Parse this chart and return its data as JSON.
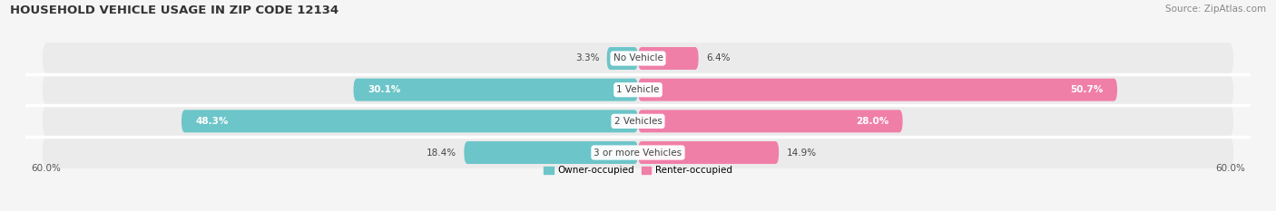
{
  "title": "HOUSEHOLD VEHICLE USAGE IN ZIP CODE 12134",
  "source": "Source: ZipAtlas.com",
  "categories": [
    "No Vehicle",
    "1 Vehicle",
    "2 Vehicles",
    "3 or more Vehicles"
  ],
  "owner_values": [
    3.3,
    30.1,
    48.3,
    18.4
  ],
  "renter_values": [
    6.4,
    50.7,
    28.0,
    14.9
  ],
  "owner_color": "#6cc5c8",
  "renter_color": "#f07fa8",
  "background_color": "#f5f5f5",
  "bar_bg_color": "#e2e2e2",
  "row_bg_color": "#ebebeb",
  "xlim": 60.0,
  "legend_owner": "Owner-occupied",
  "legend_renter": "Renter-occupied",
  "title_fontsize": 9.5,
  "source_fontsize": 7.5,
  "label_fontsize": 7.5,
  "cat_fontsize": 7.5,
  "bar_height": 0.72,
  "white_text_threshold": 20.0
}
